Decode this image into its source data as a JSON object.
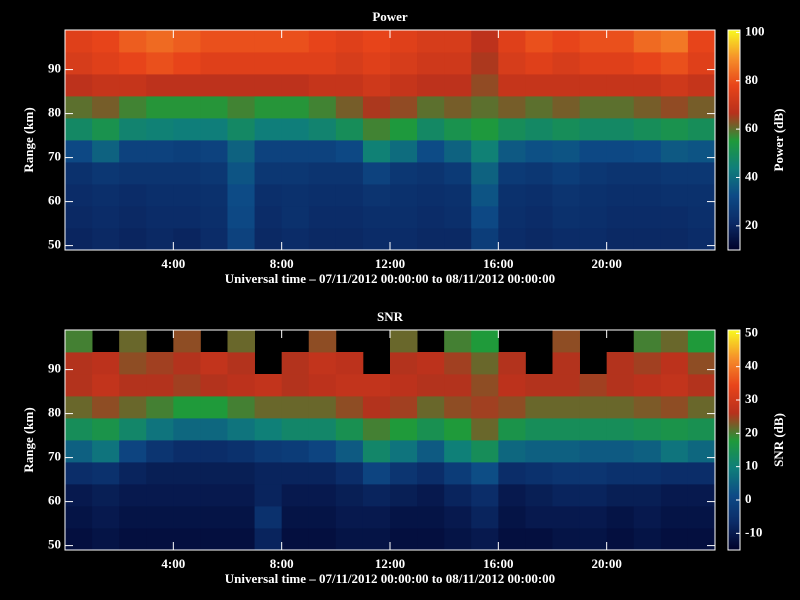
{
  "chart_data": [
    {
      "type": "heatmap",
      "title": "Power",
      "xlabel": "Universal time – 07/11/2012 00:00:00 to 08/11/2012 00:00:00",
      "ylabel": "Range (km)",
      "colorbar_label": "Power (dB)",
      "xlim": [
        0,
        24
      ],
      "ylim": [
        49,
        99
      ],
      "clim": [
        10,
        101
      ],
      "xticks": [
        {
          "value": 4,
          "label": "4:00"
        },
        {
          "value": 8,
          "label": "8:00"
        },
        {
          "value": 12,
          "label": "12:00"
        },
        {
          "value": 16,
          "label": "16:00"
        },
        {
          "value": 20,
          "label": "20:00"
        }
      ],
      "yticks": [
        50,
        60,
        70,
        80,
        90
      ],
      "cticks": [
        20,
        40,
        60,
        80,
        100
      ],
      "colormap": [
        "#000028",
        "#0b2a66",
        "#0d4a86",
        "#0f7f7a",
        "#1f9a3a",
        "#b8301c",
        "#e8441a",
        "#f6902a",
        "#f8f820"
      ],
      "x": [
        0.5,
        1.5,
        2.5,
        3.5,
        4.5,
        5.5,
        6.5,
        7.5,
        8.5,
        9.5,
        10.5,
        11.5,
        12.5,
        13.5,
        14.5,
        15.5,
        16.5,
        17.5,
        18.5,
        19.5,
        20.5,
        21.5,
        22.5,
        23.5
      ],
      "y": [
        51.5,
        56.5,
        61.5,
        66.5,
        71.5,
        76.5,
        81.5,
        86.5,
        91.5,
        96.5
      ],
      "z": [
        [
          20,
          21,
          20,
          21,
          20,
          22,
          30,
          21,
          22,
          21,
          21,
          22,
          22,
          21,
          21,
          28,
          22,
          21,
          22,
          22,
          21,
          21,
          21,
          22
        ],
        [
          21,
          22,
          21,
          22,
          22,
          23,
          32,
          22,
          24,
          22,
          22,
          23,
          23,
          22,
          23,
          32,
          23,
          22,
          24,
          23,
          22,
          22,
          22,
          23
        ],
        [
          22,
          23,
          22,
          23,
          23,
          24,
          33,
          23,
          24,
          23,
          23,
          25,
          24,
          23,
          24,
          35,
          24,
          23,
          25,
          24,
          23,
          23,
          24,
          24
        ],
        [
          24,
          26,
          25,
          25,
          25,
          26,
          35,
          26,
          26,
          25,
          25,
          30,
          26,
          25,
          27,
          38,
          27,
          26,
          28,
          26,
          25,
          25,
          26,
          26
        ],
        [
          32,
          38,
          30,
          30,
          29,
          30,
          38,
          30,
          30,
          30,
          32,
          45,
          40,
          33,
          38,
          45,
          36,
          34,
          35,
          32,
          32,
          33,
          36,
          35
        ],
        [
          48,
          52,
          46,
          45,
          44,
          44,
          48,
          44,
          44,
          46,
          50,
          58,
          55,
          48,
          52,
          55,
          50,
          48,
          50,
          48,
          48,
          50,
          52,
          50
        ],
        [
          60,
          62,
          58,
          56,
          56,
          56,
          58,
          56,
          56,
          58,
          62,
          66,
          64,
          60,
          62,
          60,
          62,
          60,
          62,
          60,
          60,
          62,
          64,
          62
        ],
        [
          68,
          70,
          70,
          68,
          68,
          68,
          68,
          68,
          68,
          70,
          70,
          72,
          70,
          68,
          68,
          64,
          70,
          70,
          70,
          70,
          70,
          70,
          72,
          70
        ],
        [
          74,
          76,
          78,
          80,
          78,
          76,
          76,
          76,
          76,
          76,
          74,
          76,
          74,
          72,
          72,
          66,
          74,
          76,
          74,
          76,
          76,
          78,
          80,
          76
        ],
        [
          76,
          78,
          82,
          84,
          82,
          80,
          80,
          80,
          80,
          78,
          76,
          78,
          76,
          74,
          74,
          68,
          76,
          80,
          78,
          80,
          80,
          84,
          86,
          78
        ]
      ]
    },
    {
      "type": "heatmap",
      "title": "SNR",
      "xlabel": "Universal time – 07/11/2012 00:00:00 to 08/11/2012 00:00:00",
      "ylabel": "Range (km)",
      "colorbar_label": "SNR (dB)",
      "xlim": [
        0,
        24
      ],
      "ylim": [
        49,
        99
      ],
      "clim": [
        -15,
        51
      ],
      "xticks": [
        {
          "value": 4,
          "label": "4:00"
        },
        {
          "value": 8,
          "label": "8:00"
        },
        {
          "value": 12,
          "label": "12:00"
        },
        {
          "value": 16,
          "label": "16:00"
        },
        {
          "value": 20,
          "label": "20:00"
        }
      ],
      "yticks": [
        50,
        60,
        70,
        80,
        90
      ],
      "cticks": [
        -10,
        0,
        10,
        20,
        30,
        40,
        50
      ],
      "colormap": [
        "#000028",
        "#0b2a66",
        "#0d4a86",
        "#0f7f7a",
        "#1f9a3a",
        "#b8301c",
        "#e8441a",
        "#f6902a",
        "#f8f820"
      ],
      "x": [
        0.5,
        1.5,
        2.5,
        3.5,
        4.5,
        5.5,
        6.5,
        7.5,
        8.5,
        9.5,
        10.5,
        11.5,
        12.5,
        13.5,
        14.5,
        15.5,
        16.5,
        17.5,
        18.5,
        19.5,
        20.5,
        21.5,
        22.5,
        23.5
      ],
      "y": [
        51.5,
        56.5,
        61.5,
        66.5,
        71.5,
        76.5,
        81.5,
        86.5,
        91.5,
        96.5
      ],
      "z": [
        [
          -12,
          -11,
          -12,
          -12,
          -12,
          -12,
          -12,
          -8,
          -12,
          -12,
          -11,
          -11,
          -12,
          -12,
          -11,
          -10,
          -12,
          -12,
          -11,
          -11,
          -12,
          -11,
          -12,
          -12
        ],
        [
          -11,
          -10,
          -11,
          -11,
          -11,
          -11,
          -11,
          -5,
          -11,
          -11,
          -10,
          -10,
          -11,
          -11,
          -10,
          -8,
          -11,
          -10,
          -10,
          -10,
          -11,
          -10,
          -11,
          -11
        ],
        [
          -10,
          -9,
          -10,
          -10,
          -10,
          -10,
          -10,
          -8,
          -10,
          -10,
          -9,
          -8,
          -9,
          -10,
          -8,
          -6,
          -10,
          -9,
          -8,
          -8,
          -9,
          -9,
          -10,
          -10
        ],
        [
          -6,
          -5,
          -8,
          -9,
          -9,
          -9,
          -9,
          -8,
          -8,
          -8,
          -6,
          0,
          -4,
          -6,
          -2,
          2,
          -6,
          -5,
          -4,
          -4,
          -5,
          -5,
          -6,
          -6
        ],
        [
          5,
          8,
          0,
          -4,
          -6,
          -6,
          -5,
          -3,
          -2,
          0,
          4,
          12,
          8,
          4,
          10,
          14,
          6,
          5,
          5,
          4,
          4,
          5,
          8,
          6
        ],
        [
          14,
          16,
          12,
          8,
          6,
          6,
          8,
          10,
          12,
          12,
          15,
          20,
          18,
          15,
          18,
          22,
          16,
          14,
          14,
          14,
          14,
          15,
          16,
          15
        ],
        [
          22,
          24,
          22,
          20,
          18,
          18,
          20,
          22,
          22,
          22,
          24,
          26,
          25,
          22,
          24,
          25,
          24,
          22,
          22,
          22,
          22,
          23,
          24,
          22
        ],
        [
          26,
          28,
          26,
          26,
          25,
          26,
          27,
          28,
          26,
          27,
          28,
          28,
          27,
          26,
          26,
          24,
          27,
          26,
          26,
          25,
          26,
          27,
          28,
          26
        ],
        [
          26,
          27,
          24,
          25,
          26,
          28,
          26,
          null,
          26,
          28,
          27,
          null,
          26,
          27,
          25,
          22,
          26,
          null,
          26,
          null,
          26,
          25,
          27,
          24
        ],
        [
          20,
          null,
          22,
          null,
          24,
          null,
          22,
          null,
          null,
          24,
          null,
          null,
          22,
          null,
          20,
          18,
          null,
          null,
          24,
          null,
          null,
          20,
          22,
          18
        ]
      ]
    }
  ]
}
